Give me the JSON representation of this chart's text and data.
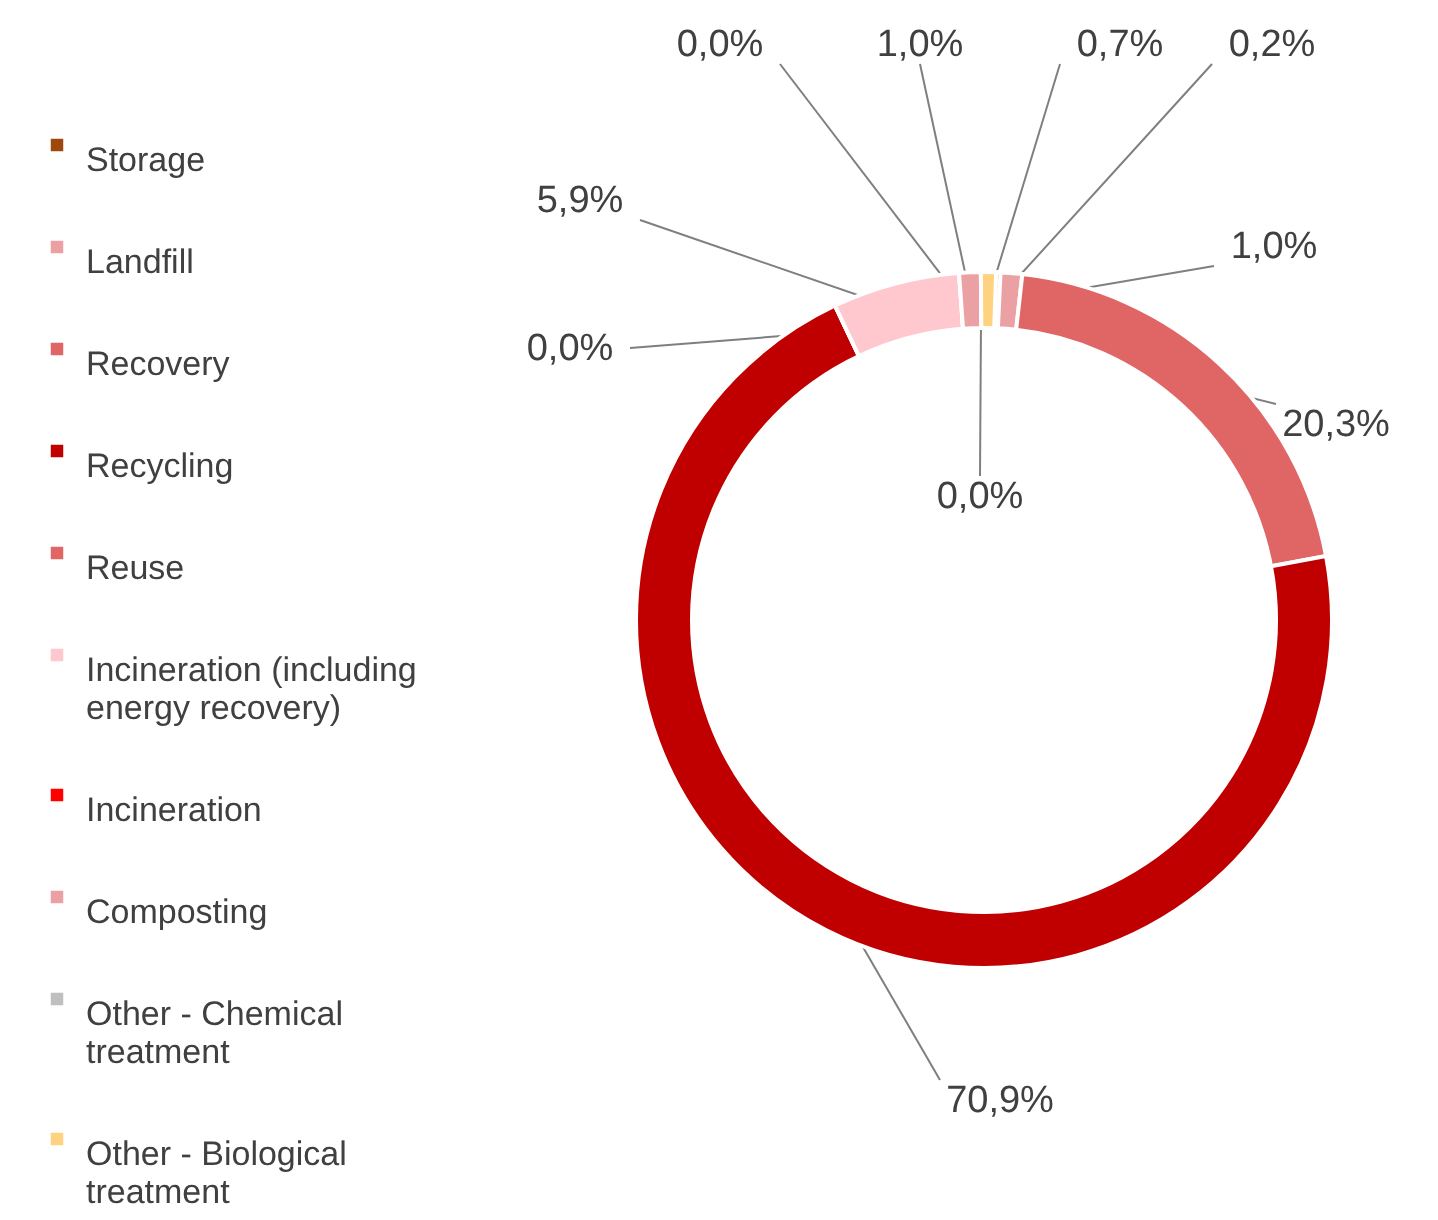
{
  "chart_data": {
    "type": "donut",
    "categories": [
      "Storage",
      "Landfill",
      "Recovery",
      "Recycling",
      "Reuse",
      "Incineration (including energy recovery)",
      "Incineration",
      "Composting",
      "Other - Chemical treatment",
      "Other - Biological treatment"
    ],
    "values": [
      0.2,
      1.0,
      20.3,
      70.9,
      0.0,
      5.9,
      0.0,
      1.0,
      0.0,
      0.7
    ],
    "colors": [
      "#9e480e",
      "#eba0a4",
      "#e06666",
      "#c00000",
      "#e06666",
      "#ffc7ce",
      "#ff0000",
      "#eba0a4",
      "#bfbfbf",
      "#ffd280"
    ],
    "value_labels": [
      "0,2%",
      "1,0%",
      "20,3%",
      "70,9%",
      "0,0%",
      "5,9%",
      "0,0%",
      "1,0%",
      "0,0%",
      "0,7%"
    ],
    "legend": "left"
  }
}
